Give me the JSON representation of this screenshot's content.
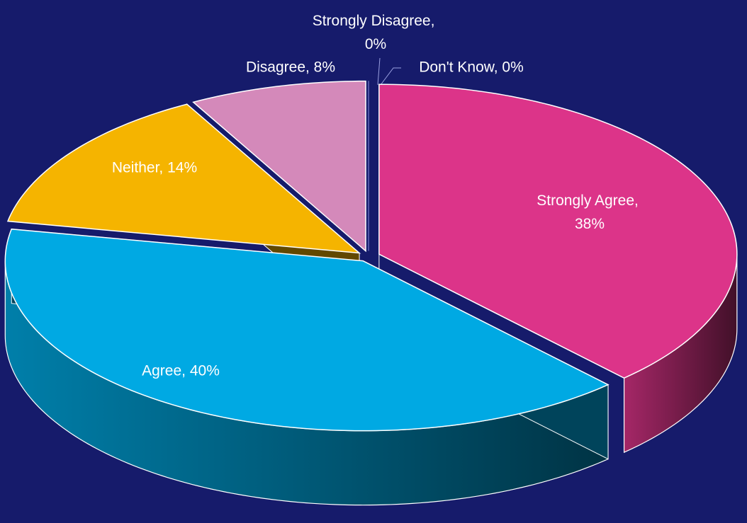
{
  "chart_data": {
    "type": "pie",
    "values": [
      38,
      40,
      14,
      8,
      0,
      0
    ],
    "value_labels": [
      "Strongly Agree, 38%",
      "Agree, 40%",
      "Neither, 14%",
      "Disagree, 8%",
      "Strongly Disagree, 0%",
      "Don't Know, 0%"
    ],
    "colors": [
      "#dc3489",
      "#00a9e3",
      "#f5b400",
      "#d489ba",
      "#7b7fd0",
      "#8a8ee0"
    ]
  }
}
